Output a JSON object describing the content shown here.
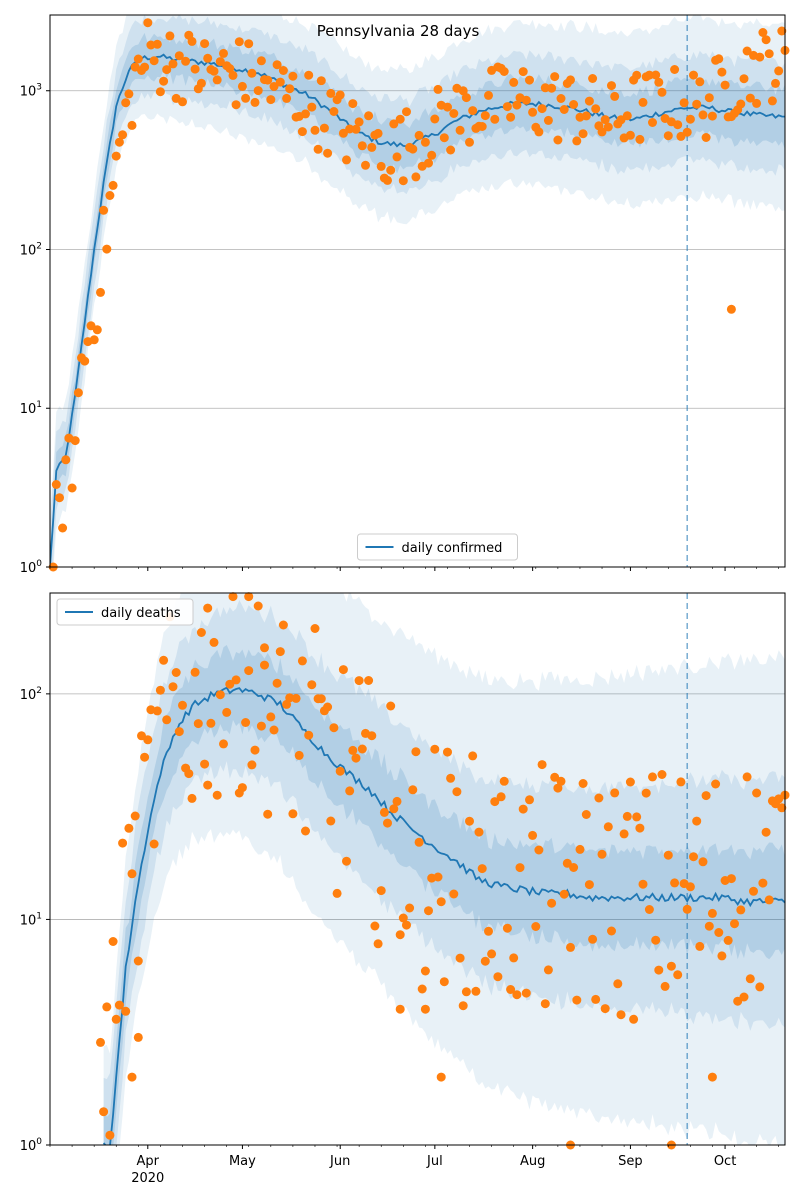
{
  "figure": {
    "title": "Pennsylvania 28 days"
  },
  "colors": {
    "series_line": "#1f77b4",
    "observed_points": "#ff7f0e",
    "band": "#1f77b4",
    "grid": "#b0b0b0",
    "cutoff_line": "#1f77b4"
  },
  "x_axis": {
    "start": "2020-03-01",
    "end": "2020-10-20",
    "month_ticks": [
      {
        "date": "2020-04-01",
        "label": "Apr",
        "sublabel": "2020"
      },
      {
        "date": "2020-05-01",
        "label": "May",
        "sublabel": ""
      },
      {
        "date": "2020-06-01",
        "label": "Jun",
        "sublabel": ""
      },
      {
        "date": "2020-07-01",
        "label": "Jul",
        "sublabel": ""
      },
      {
        "date": "2020-08-01",
        "label": "Aug",
        "sublabel": ""
      },
      {
        "date": "2020-09-01",
        "label": "Sep",
        "sublabel": ""
      },
      {
        "date": "2020-10-01",
        "label": "Oct",
        "sublabel": ""
      }
    ],
    "cutoff_date": "2020-09-19"
  },
  "chart_data": [
    {
      "type": "line",
      "scale": "log",
      "ylim": [
        1,
        3000
      ],
      "yticks": [
        {
          "value": 1,
          "base": "10",
          "exp": "0"
        },
        {
          "value": 10,
          "base": "10",
          "exp": "1"
        },
        {
          "value": 100,
          "base": "10",
          "exp": "2"
        },
        {
          "value": 1000,
          "base": "10",
          "exp": "3"
        }
      ],
      "grid": true,
      "legend": {
        "label": "daily confirmed",
        "placement": "lower-center"
      },
      "model_anchors": [
        [
          "2020-03-01",
          1
        ],
        [
          "2020-03-03",
          4
        ],
        [
          "2020-03-06",
          5
        ],
        [
          "2020-03-09",
          12
        ],
        [
          "2020-03-12",
          35
        ],
        [
          "2020-03-15",
          100
        ],
        [
          "2020-03-18",
          260
        ],
        [
          "2020-03-22",
          800
        ],
        [
          "2020-03-26",
          1350
        ],
        [
          "2020-03-30",
          1600
        ],
        [
          "2020-04-04",
          1650
        ],
        [
          "2020-04-12",
          1550
        ],
        [
          "2020-04-20",
          1500
        ],
        [
          "2020-04-28",
          1400
        ],
        [
          "2020-05-06",
          1300
        ],
        [
          "2020-05-14",
          1100
        ],
        [
          "2020-05-22",
          930
        ],
        [
          "2020-05-30",
          720
        ],
        [
          "2020-06-06",
          550
        ],
        [
          "2020-06-14",
          470
        ],
        [
          "2020-06-22",
          450
        ],
        [
          "2020-06-30",
          520
        ],
        [
          "2020-07-08",
          650
        ],
        [
          "2020-07-16",
          750
        ],
        [
          "2020-07-24",
          820
        ],
        [
          "2020-08-01",
          830
        ],
        [
          "2020-08-09",
          800
        ],
        [
          "2020-08-17",
          750
        ],
        [
          "2020-08-25",
          680
        ],
        [
          "2020-09-02",
          660
        ],
        [
          "2020-09-10",
          720
        ],
        [
          "2020-09-18",
          780
        ],
        [
          "2020-09-26",
          780
        ],
        [
          "2020-10-04",
          730
        ],
        [
          "2020-10-12",
          700
        ],
        [
          "2020-10-20",
          680
        ]
      ],
      "band_ratios_inner": [
        1.3,
        1.5
      ],
      "band_ratios_mid": [
        1.7,
        2.2
      ],
      "band_ratios_outer": [
        2.2,
        3.8
      ],
      "observed_anchors": [
        [
          "2020-03-03",
          2
        ],
        [
          "2020-03-07",
          4
        ],
        [
          "2020-03-09",
          6
        ],
        [
          "2020-03-11",
          19
        ],
        [
          "2020-03-14",
          33
        ],
        [
          "2020-03-16",
          52
        ],
        [
          "2020-03-18",
          105
        ],
        [
          "2020-03-20",
          190
        ],
        [
          "2020-03-22",
          320
        ],
        [
          "2020-03-24",
          540
        ],
        [
          "2020-03-26",
          800
        ],
        [
          "2020-03-28",
          1200
        ],
        [
          "2020-04-01",
          1700
        ],
        [
          "2020-04-08",
          1550
        ],
        [
          "2020-04-15",
          1400
        ],
        [
          "2020-04-22",
          1300
        ],
        [
          "2020-04-29",
          1300
        ],
        [
          "2020-05-06",
          1150
        ],
        [
          "2020-05-13",
          1000
        ],
        [
          "2020-05-20",
          850
        ],
        [
          "2020-05-27",
          700
        ],
        [
          "2020-06-03",
          560
        ],
        [
          "2020-06-10",
          470
        ],
        [
          "2020-06-17",
          420
        ],
        [
          "2020-06-24",
          480
        ],
        [
          "2020-07-01",
          600
        ],
        [
          "2020-07-08",
          700
        ],
        [
          "2020-07-15",
          800
        ],
        [
          "2020-07-22",
          850
        ],
        [
          "2020-07-29",
          870
        ],
        [
          "2020-08-05",
          820
        ],
        [
          "2020-08-12",
          790
        ],
        [
          "2020-08-19",
          730
        ],
        [
          "2020-08-26",
          650
        ],
        [
          "2020-09-02",
          780
        ],
        [
          "2020-09-09",
          800
        ],
        [
          "2020-09-16",
          820
        ],
        [
          "2020-09-23",
          800
        ],
        [
          "2020-09-30",
          1000
        ],
        [
          "2020-10-07",
          1300
        ],
        [
          "2020-10-14",
          1500
        ],
        [
          "2020-10-20",
          1450
        ]
      ],
      "observed_scatter_factor": 0.55,
      "observed_extra": [
        [
          "2020-03-02",
          1
        ],
        [
          "2020-10-03",
          42
        ]
      ]
    },
    {
      "type": "line",
      "scale": "log",
      "ylim": [
        1,
        280
      ],
      "yticks": [
        {
          "value": 1,
          "base": "10",
          "exp": "0"
        },
        {
          "value": 10,
          "base": "10",
          "exp": "1"
        },
        {
          "value": 100,
          "base": "10",
          "exp": "2"
        }
      ],
      "grid": true,
      "legend": {
        "label": "daily deaths",
        "placement": "top-left"
      },
      "model_anchors": [
        [
          "2020-03-20",
          1
        ],
        [
          "2020-03-22",
          2
        ],
        [
          "2020-03-25",
          6
        ],
        [
          "2020-03-28",
          12
        ],
        [
          "2020-04-01",
          25
        ],
        [
          "2020-04-05",
          45
        ],
        [
          "2020-04-10",
          70
        ],
        [
          "2020-04-15",
          88
        ],
        [
          "2020-04-22",
          100
        ],
        [
          "2020-04-29",
          105
        ],
        [
          "2020-05-06",
          100
        ],
        [
          "2020-05-13",
          90
        ],
        [
          "2020-05-20",
          70
        ],
        [
          "2020-05-27",
          55
        ],
        [
          "2020-06-03",
          45
        ],
        [
          "2020-06-10",
          38
        ],
        [
          "2020-06-17",
          30
        ],
        [
          "2020-06-24",
          25
        ],
        [
          "2020-07-01",
          21
        ],
        [
          "2020-07-08",
          18
        ],
        [
          "2020-07-15",
          15
        ],
        [
          "2020-07-22",
          14
        ],
        [
          "2020-07-29",
          13.5
        ],
        [
          "2020-08-05",
          13
        ],
        [
          "2020-08-12",
          13
        ],
        [
          "2020-08-19",
          12.5
        ],
        [
          "2020-08-26",
          12.5
        ],
        [
          "2020-09-02",
          12.5
        ],
        [
          "2020-09-09",
          12.5
        ],
        [
          "2020-09-16",
          12.5
        ],
        [
          "2020-09-23",
          12.5
        ],
        [
          "2020-09-30",
          12.5
        ],
        [
          "2020-10-07",
          12
        ],
        [
          "2020-10-14",
          12
        ],
        [
          "2020-10-20",
          12
        ]
      ],
      "band_ratios_inner": [
        1.4,
        1.7
      ],
      "band_ratios_mid": [
        2.0,
        3.5
      ],
      "band_ratios_outer": [
        2.7,
        12
      ],
      "observed_anchors": [
        [
          "2020-03-16",
          1
        ],
        [
          "2020-03-19",
          2
        ],
        [
          "2020-03-22",
          5
        ],
        [
          "2020-03-25",
          10
        ],
        [
          "2020-03-28",
          15
        ],
        [
          "2020-04-01",
          35
        ],
        [
          "2020-04-05",
          60
        ],
        [
          "2020-04-09",
          80
        ],
        [
          "2020-04-14",
          75
        ],
        [
          "2020-04-18",
          100
        ],
        [
          "2020-04-23",
          95
        ],
        [
          "2020-04-28",
          110
        ],
        [
          "2020-05-03",
          100
        ],
        [
          "2020-05-08",
          90
        ],
        [
          "2020-05-13",
          80
        ],
        [
          "2020-05-18",
          70
        ],
        [
          "2020-05-23",
          55
        ],
        [
          "2020-05-28",
          45
        ],
        [
          "2020-06-02",
          40
        ],
        [
          "2020-06-07",
          35
        ],
        [
          "2020-06-12",
          30
        ],
        [
          "2020-06-17",
          25
        ],
        [
          "2020-06-22",
          20
        ],
        [
          "2020-06-27",
          18
        ],
        [
          "2020-07-02",
          17
        ],
        [
          "2020-07-07",
          16
        ],
        [
          "2020-07-12",
          15
        ],
        [
          "2020-07-17",
          14
        ],
        [
          "2020-07-22",
          14
        ],
        [
          "2020-07-27",
          13
        ],
        [
          "2020-08-01",
          13
        ],
        [
          "2020-08-06",
          13
        ],
        [
          "2020-08-11",
          13
        ],
        [
          "2020-08-16",
          12
        ],
        [
          "2020-08-21",
          13
        ],
        [
          "2020-08-26",
          13
        ],
        [
          "2020-08-31",
          13
        ],
        [
          "2020-09-05",
          13
        ],
        [
          "2020-09-10",
          13
        ],
        [
          "2020-09-15",
          13
        ],
        [
          "2020-09-20",
          13
        ],
        [
          "2020-09-25",
          13
        ],
        [
          "2020-09-30",
          14
        ],
        [
          "2020-10-05",
          15
        ],
        [
          "2020-10-10",
          15
        ],
        [
          "2020-10-15",
          16
        ],
        [
          "2020-10-20",
          16
        ]
      ],
      "observed_scatter_factor": 1.1,
      "observed_extra": [
        [
          "2020-04-28",
          270
        ],
        [
          "2020-05-03",
          270
        ],
        [
          "2020-05-08",
          160
        ],
        [
          "2020-04-20",
          240
        ],
        [
          "2020-03-27",
          2
        ],
        [
          "2020-03-29",
          3
        ],
        [
          "2020-06-20",
          4
        ],
        [
          "2020-06-28",
          4
        ],
        [
          "2020-07-03",
          2
        ],
        [
          "2020-08-13",
          1
        ],
        [
          "2020-09-14",
          1
        ],
        [
          "2020-09-27",
          2
        ]
      ]
    }
  ]
}
